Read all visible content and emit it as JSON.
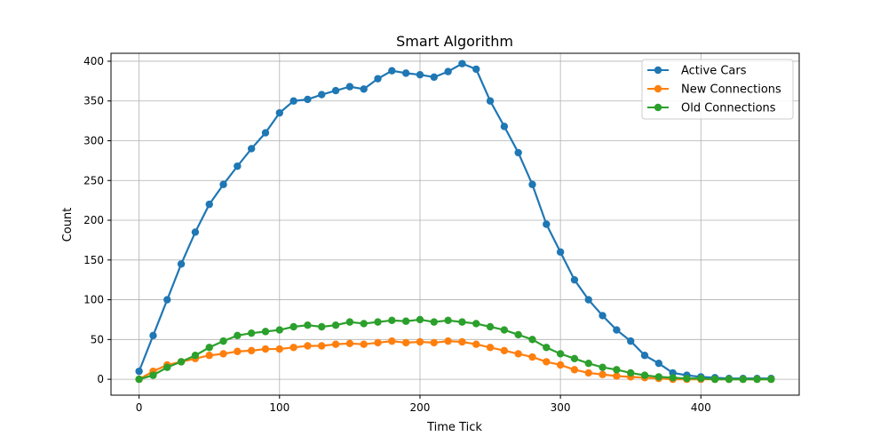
{
  "chart_data": {
    "type": "scatter",
    "title": "Smart Algorithm",
    "xlabel": "Time Tick",
    "ylabel": "Count",
    "xlim": [
      -20,
      470
    ],
    "ylim": [
      -20,
      410
    ],
    "xticks": [
      0,
      100,
      200,
      300,
      400
    ],
    "yticks": [
      0,
      50,
      100,
      150,
      200,
      250,
      300,
      350,
      400
    ],
    "grid": true,
    "legend_position": "top-right",
    "series": [
      {
        "name": "Active Cars",
        "color": "#1f77b4",
        "x": [
          0,
          10,
          20,
          30,
          40,
          50,
          60,
          70,
          80,
          90,
          100,
          110,
          120,
          130,
          140,
          150,
          160,
          170,
          180,
          190,
          200,
          210,
          220,
          230,
          240,
          250,
          260,
          270,
          280,
          290,
          300,
          310,
          320,
          330,
          340,
          350,
          360,
          370,
          380,
          390,
          400,
          410,
          420,
          430,
          440,
          450
        ],
        "values": [
          10,
          55,
          100,
          145,
          185,
          220,
          245,
          268,
          290,
          310,
          335,
          350,
          352,
          358,
          363,
          368,
          365,
          378,
          388,
          385,
          383,
          380,
          387,
          397,
          390,
          350,
          318,
          285,
          245,
          195,
          160,
          125,
          100,
          80,
          62,
          48,
          30,
          20,
          8,
          5,
          3,
          2,
          1,
          1,
          1,
          1
        ]
      },
      {
        "name": "New Connections",
        "color": "#ff7f0e",
        "x": [
          0,
          10,
          20,
          30,
          40,
          50,
          60,
          70,
          80,
          90,
          100,
          110,
          120,
          130,
          140,
          150,
          160,
          170,
          180,
          190,
          200,
          210,
          220,
          230,
          240,
          250,
          260,
          270,
          280,
          290,
          300,
          310,
          320,
          330,
          340,
          350,
          360,
          370,
          380,
          390,
          400,
          410,
          420,
          430,
          440,
          450
        ],
        "values": [
          0,
          10,
          18,
          22,
          26,
          30,
          32,
          35,
          36,
          38,
          38,
          40,
          42,
          42,
          44,
          45,
          44,
          46,
          48,
          46,
          47,
          46,
          48,
          47,
          44,
          40,
          36,
          32,
          28,
          22,
          18,
          12,
          8,
          6,
          4,
          3,
          2,
          1,
          0,
          0,
          0,
          0,
          0,
          0,
          0,
          0
        ]
      },
      {
        "name": "Old Connections",
        "color": "#2ca02c",
        "x": [
          0,
          10,
          20,
          30,
          40,
          50,
          60,
          70,
          80,
          90,
          100,
          110,
          120,
          130,
          140,
          150,
          160,
          170,
          180,
          190,
          200,
          210,
          220,
          230,
          240,
          250,
          260,
          270,
          280,
          290,
          300,
          310,
          320,
          330,
          340,
          350,
          360,
          370,
          380,
          390,
          400,
          410,
          420,
          430,
          440,
          450
        ],
        "values": [
          0,
          5,
          15,
          22,
          30,
          40,
          48,
          55,
          58,
          60,
          62,
          66,
          68,
          66,
          68,
          72,
          70,
          72,
          74,
          73,
          75,
          72,
          74,
          72,
          70,
          66,
          62,
          56,
          50,
          40,
          32,
          26,
          20,
          15,
          12,
          8,
          5,
          3,
          2,
          1,
          1,
          0,
          0,
          0,
          0,
          0
        ]
      }
    ]
  }
}
